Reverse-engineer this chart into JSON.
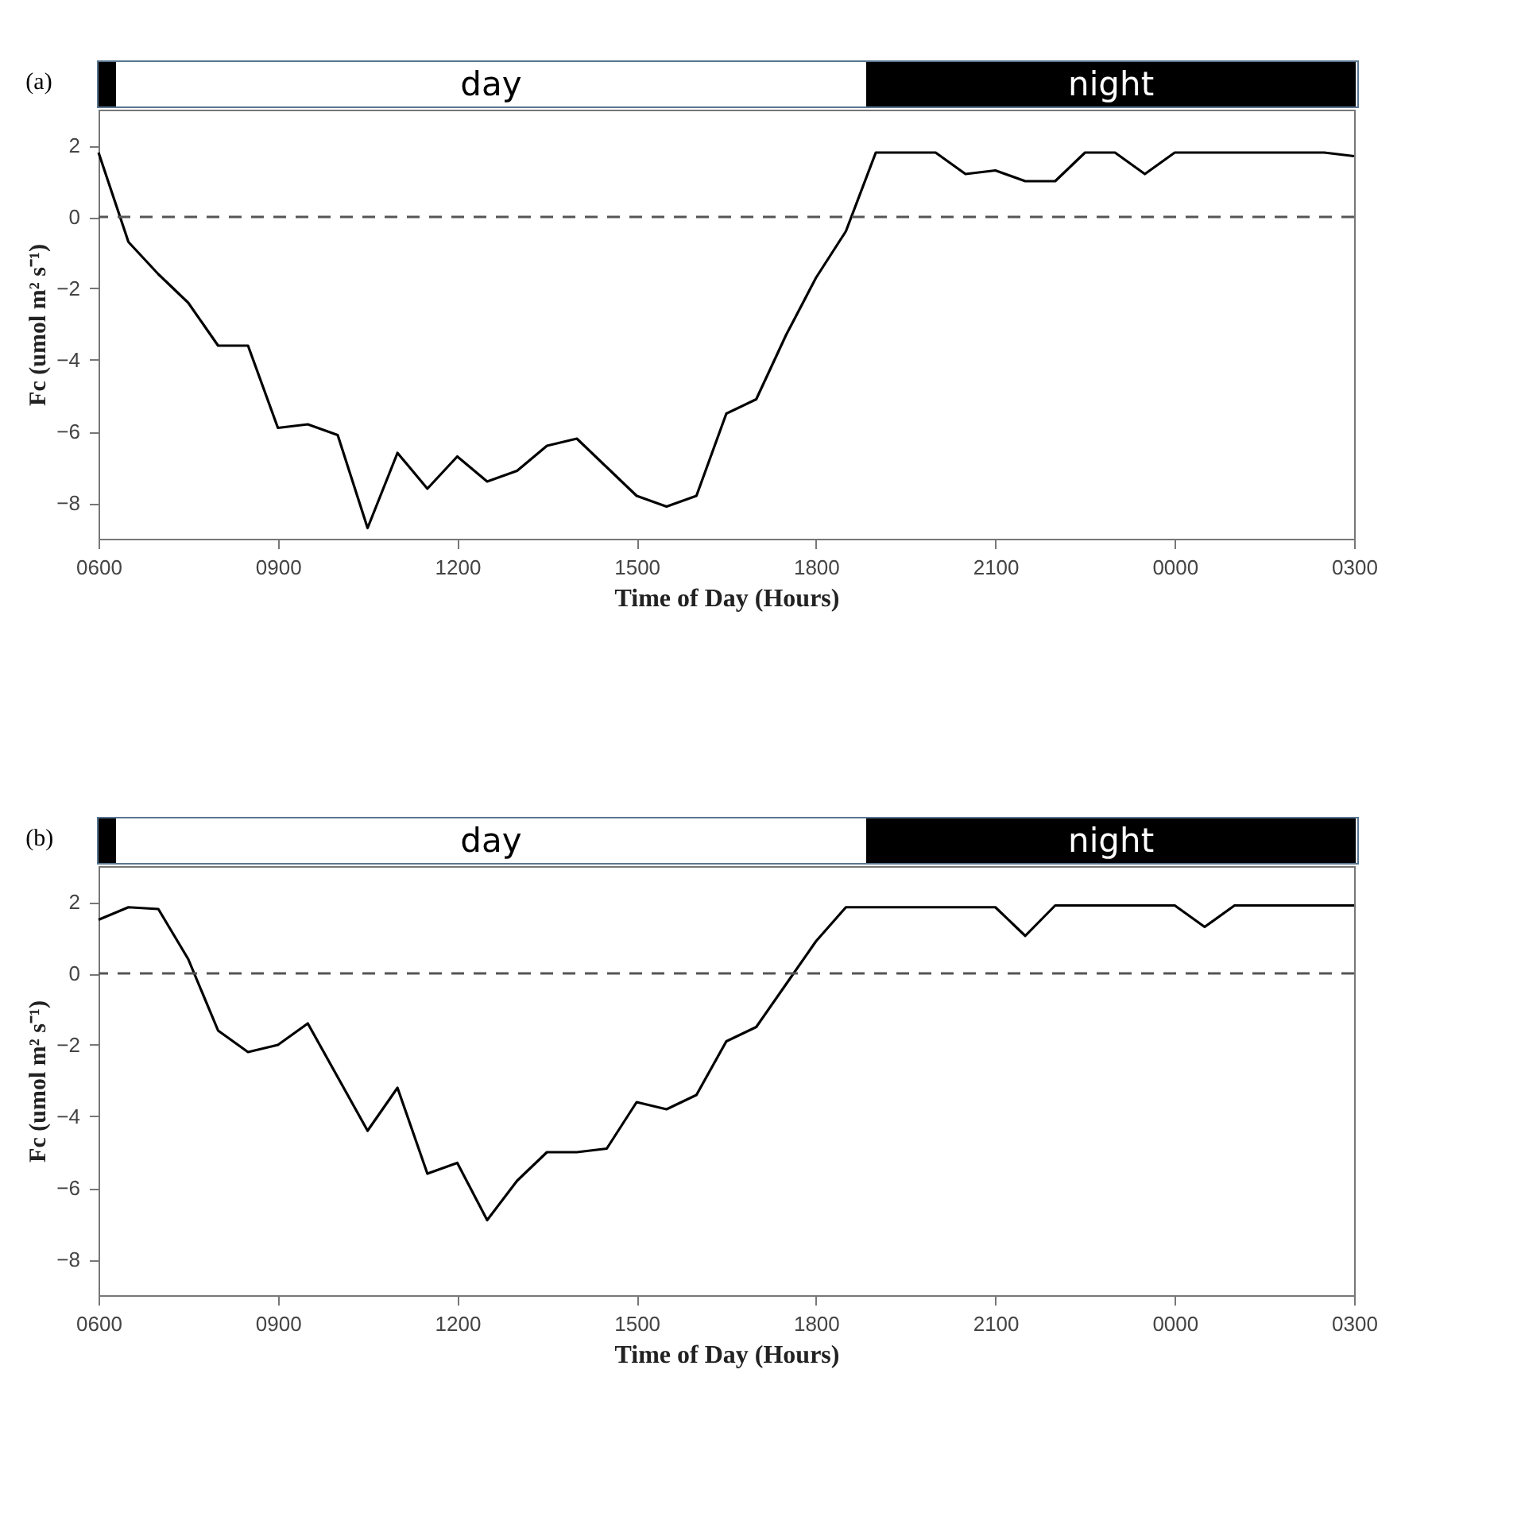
{
  "chart_data": [
    {
      "type": "line",
      "title": "(a)",
      "xlabel": "Time of Day (Hours)",
      "ylabel": "Fc (umol m² s⁻¹)",
      "categories": [
        "0600",
        null,
        null,
        null,
        null,
        null,
        "0900",
        null,
        null,
        null,
        null,
        null,
        "1200",
        null,
        null,
        null,
        null,
        null,
        "1500",
        null,
        null,
        null,
        null,
        null,
        "1800",
        null,
        null,
        null,
        null,
        null,
        "2100",
        null,
        null,
        null,
        null,
        null,
        "0000",
        null,
        null,
        null,
        null,
        null,
        "0300"
      ],
      "series": [
        {
          "color": "#000000",
          "values": [
            1.8,
            -0.7,
            -1.6,
            -2.4,
            -3.6,
            -3.6,
            -5.9,
            -5.8,
            -6.1,
            -8.7,
            -6.6,
            -7.6,
            -6.7,
            -7.4,
            -7.1,
            -6.4,
            -6.2,
            -7.0,
            -7.8,
            -8.1,
            -7.8,
            -5.5,
            -5.1,
            -3.3,
            -1.7,
            -0.4,
            1.8,
            1.8,
            1.8,
            1.2,
            1.3,
            1.0,
            1.0,
            1.8,
            1.8,
            1.2,
            1.8,
            1.8,
            1.8,
            1.8,
            1.8,
            1.8,
            1.7
          ]
        }
      ],
      "ylim": [
        -9,
        3
      ],
      "yticks": [
        -8,
        -6,
        -4,
        -2,
        0,
        2
      ],
      "ref_lines": [
        {
          "axis": "y",
          "value": 0,
          "color": "#555555",
          "line_style": "dashed"
        }
      ],
      "annotations": [
        "day",
        "night"
      ],
      "grid": false,
      "marker": "none",
      "line_style": "solid"
    },
    {
      "type": "line",
      "title": "(b)",
      "xlabel": "Time of Day (Hours)",
      "ylabel": "Fc (umol m² s⁻¹)",
      "categories": [
        "0600",
        null,
        null,
        null,
        null,
        null,
        "0900",
        null,
        null,
        null,
        null,
        null,
        "1200",
        null,
        null,
        null,
        null,
        null,
        "1500",
        null,
        null,
        null,
        null,
        null,
        "1800",
        null,
        null,
        null,
        null,
        null,
        "2100",
        null,
        null,
        null,
        null,
        null,
        "0000",
        null,
        null,
        null,
        null,
        null,
        "0300"
      ],
      "series": [
        {
          "color": "#000000",
          "values": [
            1.5,
            1.85,
            1.8,
            0.4,
            -1.6,
            -2.2,
            -2.0,
            -1.4,
            -2.9,
            -4.4,
            -3.2,
            -5.6,
            -5.3,
            -6.9,
            -5.8,
            -5.0,
            -5.0,
            -4.9,
            -3.6,
            -3.8,
            -3.4,
            -1.9,
            -1.5,
            -0.3,
            0.9,
            1.85,
            1.85,
            1.85,
            1.85,
            1.85,
            1.85,
            1.05,
            1.9,
            1.9,
            1.9,
            1.9,
            1.9,
            1.3,
            1.9,
            1.9,
            1.9,
            1.9,
            1.9
          ]
        }
      ],
      "ylim": [
        -9,
        3
      ],
      "yticks": [
        -8,
        -6,
        -4,
        -2,
        0,
        2
      ],
      "ref_lines": [
        {
          "axis": "y",
          "value": 0,
          "color": "#555555",
          "line_style": "dashed"
        }
      ],
      "annotations": [
        "day",
        "night"
      ],
      "grid": false,
      "marker": "none",
      "line_style": "solid"
    }
  ]
}
